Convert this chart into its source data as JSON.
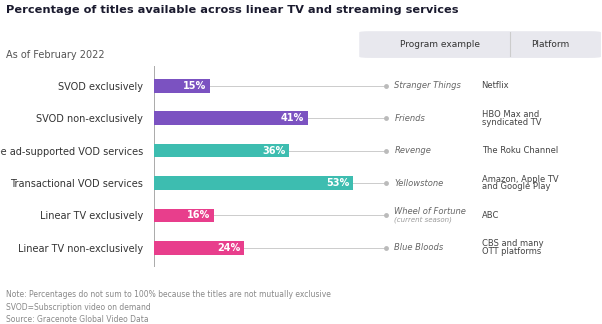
{
  "title": "Percentage of titles available across linear TV and streaming services",
  "subtitle": "As of February 2022",
  "categories": [
    "SVOD exclusively",
    "SVOD non-exclusively",
    "Free ad-supported VOD services",
    "Transactional VOD services",
    "Linear TV exclusively",
    "Linear TV non-exclusively"
  ],
  "values": [
    15,
    41,
    36,
    53,
    16,
    24
  ],
  "bar_colors": [
    "#7B52C1",
    "#7B52C1",
    "#3DBDB0",
    "#3DBDB0",
    "#E83E8C",
    "#E83E8C"
  ],
  "program_examples": [
    "Stranger Things",
    "Friends",
    "Revenge",
    "Yellowstone",
    "Wheel of Fortune",
    "Blue Bloods"
  ],
  "program_sub": [
    "",
    "",
    "",
    "",
    "(current season)",
    ""
  ],
  "platforms": [
    "Netflix",
    "HBO Max and\nsyndicated TV",
    "The Roku Channel",
    "Amazon, Apple TV\nand Google Play",
    "ABC",
    "CBS and many\nOTT platforms"
  ],
  "note1": "Note: Percentages do not sum to 100% because the titles are not mutually exclusive",
  "note2": "SVOD=Subscription video on demand",
  "note3": "Source: Gracenote Global Video Data",
  "legend_label1": "Program example",
  "legend_label2": "Platform",
  "background_color": "#FFFFFF",
  "bar_height": 0.42,
  "xlim_max": 60,
  "header_color": "#E8E8EE",
  "line_color": "#CCCCCC",
  "dot_color": "#BBBBBB",
  "label_color": "#444444",
  "italic_color": "#666666",
  "note_color": "#888888"
}
